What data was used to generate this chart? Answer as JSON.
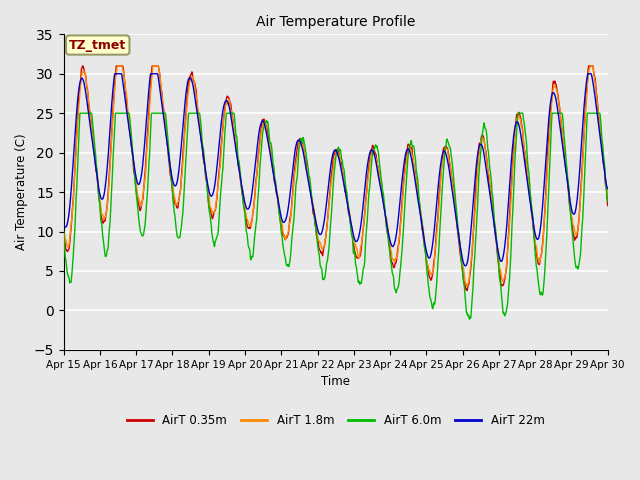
{
  "title": "Air Temperature Profile",
  "xlabel": "Time",
  "ylabel": "Air Temperature (C)",
  "ylim": [
    -5,
    35
  ],
  "yticks": [
    -5,
    0,
    5,
    10,
    15,
    20,
    25,
    30,
    35
  ],
  "background_color": "#e8e8e8",
  "plot_bg_color": "#e8e8e8",
  "grid_color": "#ffffff",
  "annotation_text": "TZ_tmet",
  "annotation_bg": "#ffffcc",
  "annotation_border": "#999966",
  "annotation_text_color": "#8b0000",
  "legend_entries": [
    "AirT 0.35m",
    "AirT 1.8m",
    "AirT 6.0m",
    "AirT 22m"
  ],
  "colors": [
    "#cc0000",
    "#ff8800",
    "#00bb00",
    "#0000cc"
  ],
  "line_width": 1.0,
  "figsize": [
    6.4,
    4.8
  ],
  "dpi": 100
}
